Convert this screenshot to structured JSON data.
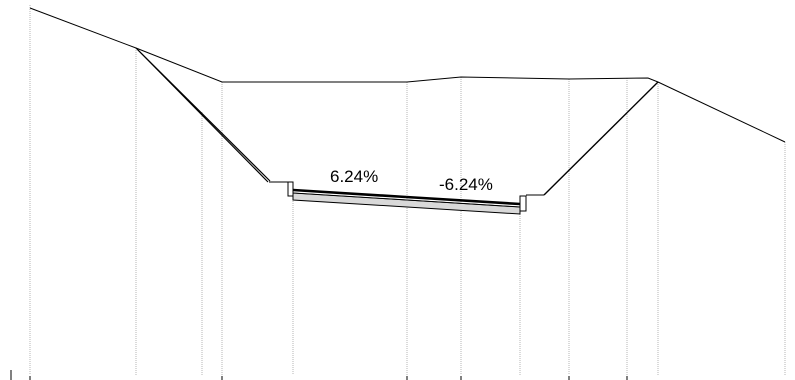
{
  "cross_section": {
    "left_slope_label": "6.24%",
    "right_slope_label": "-6.24%"
  },
  "colors": {
    "ground_line": "#000000",
    "guide_line": "#b4b4b4",
    "pavement_fill": "#d9d9d9"
  }
}
